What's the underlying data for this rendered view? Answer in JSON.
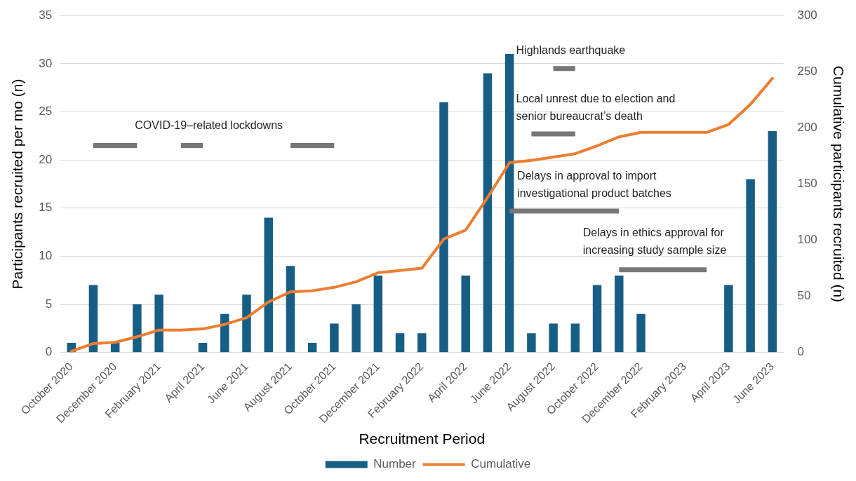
{
  "chart_data": {
    "type": "bar",
    "xlabel": "Recruitment Period",
    "ylabel": "Participants recruited per mo (n)",
    "y2label": "Cumulative participants recruited (n)",
    "categories": [
      "October 2020",
      null,
      "December 2020",
      null,
      "February 2021",
      null,
      "April 2021",
      null,
      "June 2021",
      null,
      "August 2021",
      null,
      "October 2021",
      null,
      "December 2021",
      null,
      "February 2022",
      null,
      "April 2022",
      null,
      "June 2022",
      null,
      "August 2022",
      null,
      "October 2022",
      null,
      "December 2022",
      null,
      "February 2023",
      null,
      "April 2023",
      null,
      "June 2023"
    ],
    "series": [
      {
        "name": "Number",
        "color": "#175e85",
        "values": [
          1,
          7,
          1,
          5,
          6,
          0,
          1,
          4,
          6,
          14,
          9,
          1,
          3,
          5,
          8,
          2,
          2,
          26,
          8,
          29,
          31,
          2,
          3,
          3,
          7,
          8,
          4,
          0,
          0,
          0,
          7,
          18,
          23
        ]
      },
      {
        "name": "Cumulative",
        "type": "line",
        "axis": "y2",
        "color": "#ed7d31",
        "values": [
          1,
          8,
          9,
          14,
          20,
          20,
          21,
          25,
          31,
          45,
          54,
          55,
          58,
          63,
          71,
          73,
          75,
          101,
          109,
          138,
          169,
          171,
          174,
          177,
          184,
          192,
          196,
          196,
          196,
          196,
          203,
          221,
          244
        ]
      },
      {
        "type": "line",
        "color": "#767676",
        "values": [
          null,
          21.5,
          21.5,
          21.5,
          null,
          null,
          null,
          null,
          null,
          null,
          null,
          null,
          null,
          null,
          null,
          null,
          null,
          null,
          null,
          null,
          null,
          null,
          null,
          null,
          null,
          null,
          null,
          null,
          null,
          null,
          null,
          null,
          null
        ]
      },
      {
        "type": "line",
        "color": "#767676",
        "values": [
          null,
          null,
          null,
          null,
          null,
          21.5,
          21.5,
          null,
          null,
          null,
          null,
          null,
          null,
          null,
          null,
          null,
          null,
          null,
          null,
          null,
          null,
          null,
          null,
          null,
          null,
          null,
          null,
          null,
          null,
          null,
          null,
          null,
          null
        ]
      },
      {
        "type": "line",
        "color": "#767676",
        "values": [
          null,
          null,
          null,
          null,
          null,
          null,
          null,
          null,
          null,
          null,
          21.5,
          21.5,
          21.5,
          null,
          null,
          null,
          null,
          null,
          null,
          null,
          null,
          null,
          null,
          null,
          null,
          null,
          null,
          null,
          null,
          null,
          null,
          null,
          null
        ]
      },
      {
        "type": "line",
        "color": "#767676",
        "values": [
          null,
          null,
          null,
          null,
          null,
          null,
          null,
          null,
          null,
          null,
          null,
          null,
          null,
          null,
          null,
          null,
          null,
          null,
          null,
          null,
          null,
          null,
          29.5,
          29.5,
          null,
          null,
          null,
          null,
          null,
          null,
          null,
          null,
          null
        ]
      },
      {
        "type": "line",
        "color": "#767676",
        "values": [
          null,
          null,
          null,
          null,
          null,
          null,
          null,
          null,
          null,
          null,
          null,
          null,
          null,
          null,
          null,
          null,
          null,
          null,
          null,
          null,
          null,
          22.7,
          22.7,
          22.7,
          null,
          null,
          null,
          null,
          null,
          null,
          null,
          null,
          null
        ]
      },
      {
        "type": "line",
        "color": "#767676",
        "values": [
          null,
          null,
          null,
          null,
          null,
          null,
          null,
          null,
          null,
          null,
          null,
          null,
          null,
          null,
          null,
          null,
          null,
          null,
          null,
          null,
          14.7,
          14.7,
          14.7,
          14.7,
          14.7,
          14.7,
          null,
          null,
          null,
          null,
          null,
          null,
          null
        ]
      },
      {
        "type": "line",
        "color": "#767676",
        "values": [
          null,
          null,
          null,
          null,
          null,
          null,
          null,
          null,
          null,
          null,
          null,
          null,
          null,
          null,
          null,
          null,
          null,
          null,
          null,
          null,
          null,
          null,
          null,
          null,
          null,
          8.6,
          8.6,
          8.6,
          8.6,
          8.6,
          null,
          null,
          null
        ]
      }
    ],
    "annotations": [
      "COVID-19–related lockdowns",
      "Highlands earthquake",
      "Local unrest due to election and senior bureaucrat’s death",
      "Delays in approval to import investigational product batches",
      "Delays in ethics approval for increasing study sample size"
    ],
    "ylim": [
      0,
      35
    ],
    "yticks": [
      0,
      5,
      10,
      15,
      20,
      25,
      30,
      35
    ],
    "y2lim": [
      0,
      300
    ],
    "y2ticks": [
      0,
      50,
      100,
      150,
      200,
      250,
      300
    ],
    "grid": "y",
    "legend": "bottom"
  }
}
